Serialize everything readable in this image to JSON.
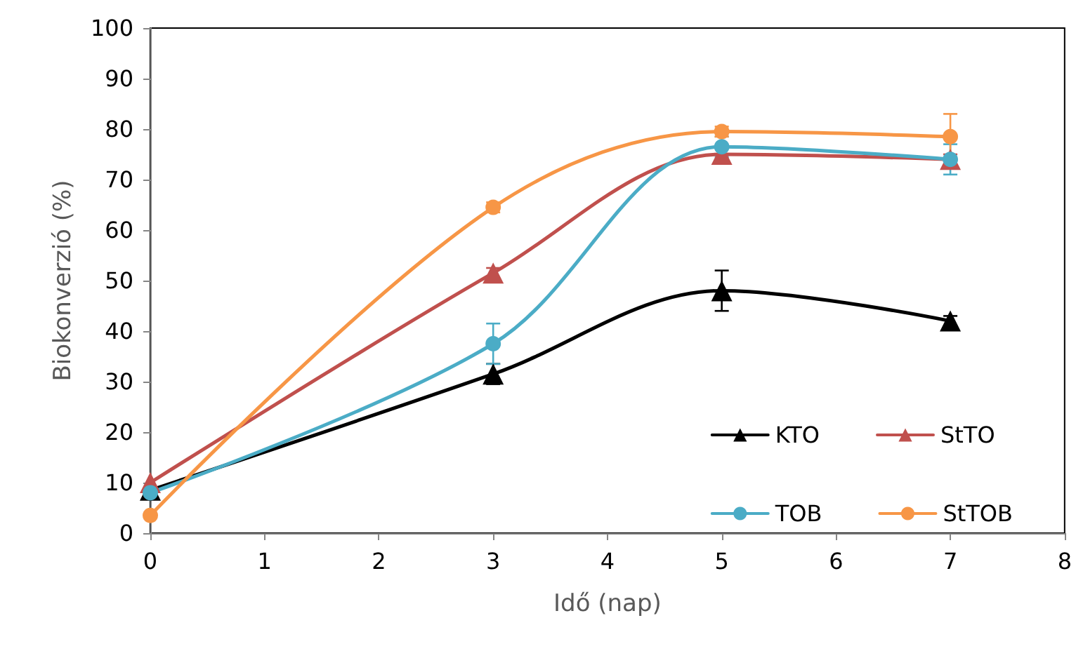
{
  "chart_data": {
    "type": "line",
    "xlabel": "Idő (nap)",
    "ylabel": "Biokonverzió (%)",
    "x": [
      0,
      3,
      5,
      7
    ],
    "xlim": [
      0,
      8
    ],
    "xticks": [
      0,
      1,
      2,
      3,
      4,
      5,
      6,
      7,
      8
    ],
    "ylim": [
      0,
      100
    ],
    "yticks": [
      0,
      10,
      20,
      30,
      40,
      50,
      60,
      70,
      80,
      90,
      100
    ],
    "grid": false,
    "legend": "bottom right",
    "series": [
      {
        "name": "KTO",
        "color": "#000000",
        "marker": "triangle",
        "values": [
          8.5,
          31.5,
          48,
          42
        ],
        "errors": [
          null,
          2,
          4,
          1
        ]
      },
      {
        "name": "StTO",
        "color": "#c0504d",
        "marker": "triangle",
        "values": [
          10,
          51.5,
          75,
          74
        ],
        "errors": [
          null,
          1,
          1.5,
          1
        ]
      },
      {
        "name": "TOB",
        "color": "#4bacc6",
        "marker": "circle",
        "values": [
          8,
          37.5,
          76.5,
          74
        ],
        "errors": [
          null,
          4,
          2,
          3
        ]
      },
      {
        "name": "StTOB",
        "color": "#f79646",
        "marker": "circle",
        "values": [
          3.5,
          64.5,
          79.5,
          78.5
        ],
        "errors": [
          null,
          1,
          1,
          4.5
        ]
      }
    ]
  }
}
